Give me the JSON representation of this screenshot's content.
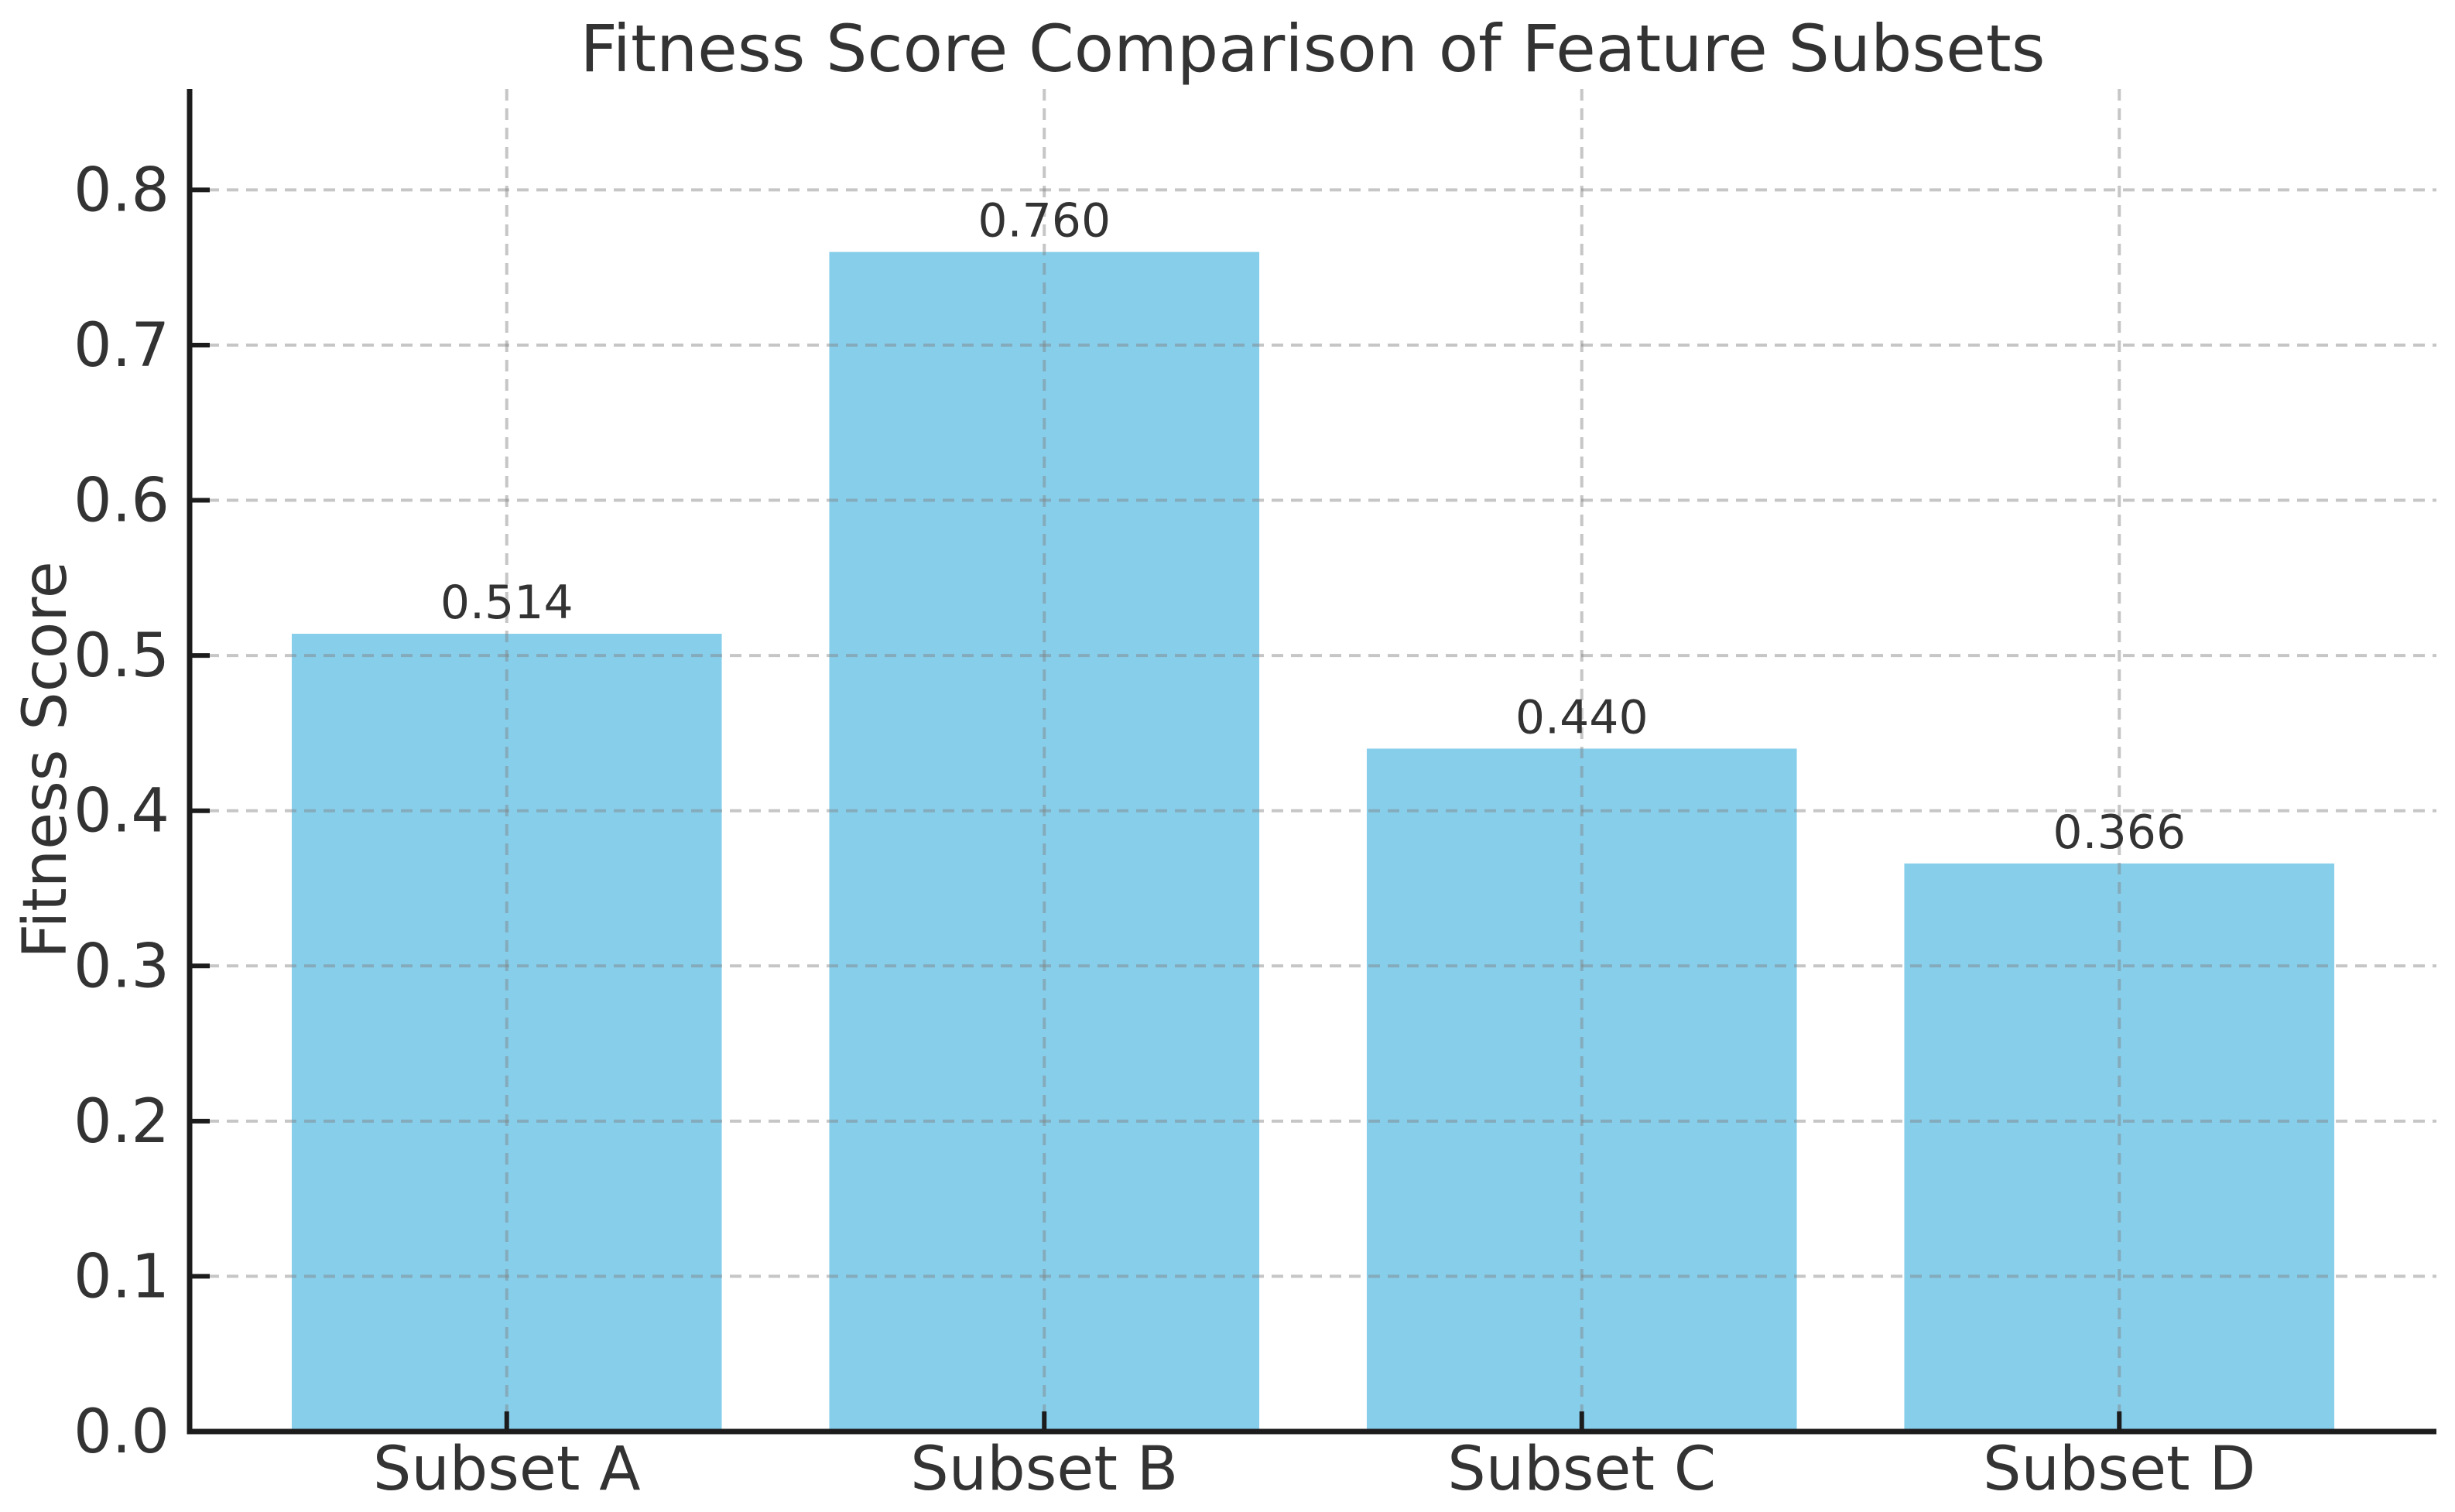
{
  "figure": {
    "background": "#ffffff"
  },
  "chart_data": {
    "type": "bar",
    "title": "Fitness Score Comparison of Feature Subsets",
    "xlabel": "",
    "ylabel": "Fitness Score",
    "categories": [
      "Subset A",
      "Subset B",
      "Subset C",
      "Subset D"
    ],
    "values": [
      0.514,
      0.76,
      0.44,
      0.366
    ],
    "bar_labels": [
      "0.514",
      "0.760",
      "0.440",
      "0.366"
    ],
    "yticks": [
      0.0,
      0.1,
      0.2,
      0.3,
      0.4,
      0.5,
      0.6,
      0.7,
      0.8
    ],
    "ytick_labels": [
      "0.0",
      "0.1",
      "0.2",
      "0.3",
      "0.4",
      "0.5",
      "0.6",
      "0.7",
      "0.8"
    ],
    "ylim": [
      0,
      0.865
    ],
    "legend": null,
    "grid": true,
    "grid_style": "dashed",
    "grid_on_top_of_bars": true,
    "bar_color": "#87CEEB",
    "grid_color": "#808080",
    "text_color": "#333333",
    "axis_color": "#1c1c1c"
  }
}
